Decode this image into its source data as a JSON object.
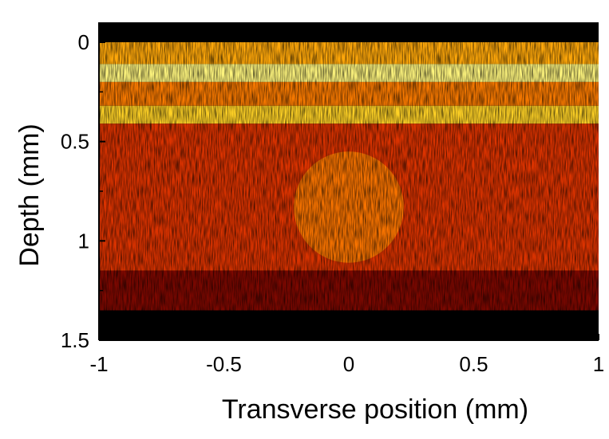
{
  "chart_data": {
    "type": "heatmap",
    "title": "",
    "xlabel": "Transverse position (mm)",
    "ylabel": "Depth (mm)",
    "xlim": [
      -1,
      1
    ],
    "ylim": [
      1.5,
      0
    ],
    "y_inverted": true,
    "x_ticks": [
      -1,
      -0.5,
      0,
      0.5,
      1
    ],
    "x_tick_labels": [
      "-1",
      "-0.5",
      "0",
      "0.5",
      "1"
    ],
    "y_ticks": [
      0,
      0.5,
      1,
      1.5
    ],
    "y_tick_labels": [
      "0",
      "0.5",
      "1",
      "1.5"
    ],
    "x_minor_step": 0.25,
    "y_minor_step": 0.25,
    "grid": false,
    "colormap": "hot",
    "colormap_stops": [
      "#000000",
      "#5c0000",
      "#c41a00",
      "#f04a00",
      "#ff9a00",
      "#ffe030",
      "#ffffa0"
    ],
    "layers": [
      {
        "depth_start": -0.1,
        "depth_end": 0.0,
        "intensity": 0.0
      },
      {
        "depth_start": 0.0,
        "depth_end": 0.11,
        "intensity": 0.7
      },
      {
        "depth_start": 0.11,
        "depth_end": 0.2,
        "intensity": 0.95
      },
      {
        "depth_start": 0.2,
        "depth_end": 0.32,
        "intensity": 0.6
      },
      {
        "depth_start": 0.32,
        "depth_end": 0.41,
        "intensity": 0.8
      },
      {
        "depth_start": 0.41,
        "depth_end": 1.15,
        "intensity": 0.42
      },
      {
        "depth_start": 1.15,
        "depth_end": 1.35,
        "intensity": 0.22
      },
      {
        "depth_start": 1.35,
        "depth_end": 1.5,
        "intensity": 0.0
      }
    ],
    "inclusion": {
      "center_x": 0.0,
      "center_depth": 0.83,
      "radius_x": 0.22,
      "radius_depth": 0.28,
      "intensity": 0.6
    }
  }
}
